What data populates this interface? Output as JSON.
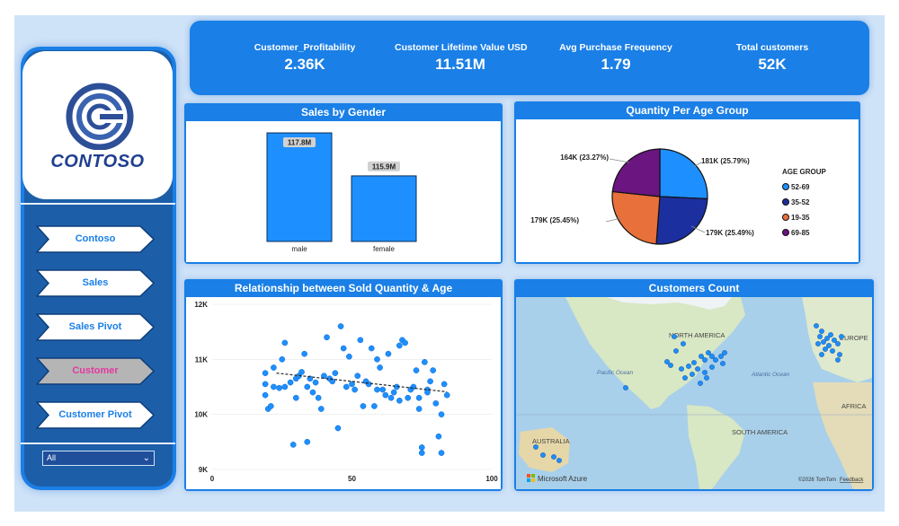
{
  "kpis": [
    {
      "label": "Customer_Profitability",
      "value": "2.36K"
    },
    {
      "label": "Customer Lifetime Value USD",
      "value": "11.51M"
    },
    {
      "label": "Avg Purchase Frequency",
      "value": "1.79"
    },
    {
      "label": "Total customers",
      "value": "52K"
    }
  ],
  "logo": {
    "text": "CONTOSO"
  },
  "nav": [
    {
      "label": "Contoso",
      "active": false
    },
    {
      "label": "Sales",
      "active": false
    },
    {
      "label": "Sales Pivot",
      "active": false
    },
    {
      "label": "Customer",
      "active": true
    },
    {
      "label": "Customer Pivot",
      "active": false
    }
  ],
  "filter": {
    "value": "All"
  },
  "panels": {
    "gender": {
      "title": "Sales by Gender"
    },
    "age": {
      "title": "Quantity Per Age Group"
    },
    "scatter": {
      "title": "Relationship between Sold Quantity & Age"
    },
    "map": {
      "title": "Customers Count"
    }
  },
  "colors": {
    "accent": "#1a7fe6",
    "bar": "#1e8fff",
    "active_text": "#e23aa0"
  },
  "chart_data": [
    {
      "type": "bar",
      "title": "Sales by Gender",
      "categories": [
        "male",
        "female"
      ],
      "values": [
        117.8,
        115.9
      ],
      "data_labels": [
        "117.8M",
        "115.9M"
      ],
      "ylim": [
        113,
        118
      ]
    },
    {
      "type": "pie",
      "title": "Quantity Per Age Group",
      "legend_title": "AGE GROUP",
      "legend_position": "right",
      "slices": [
        {
          "name": "52-69",
          "value": 181,
          "label": "181K (25.79%)",
          "color": "#1e8fff"
        },
        {
          "name": "35-52",
          "value": 179,
          "label": "179K (25.49%)",
          "color": "#1c2f9e"
        },
        {
          "name": "19-35",
          "value": 179,
          "label": "179K (25.45%)",
          "color": "#e8703a"
        },
        {
          "name": "69-85",
          "value": 164,
          "label": "164K (23.27%)",
          "color": "#6a1580"
        }
      ]
    },
    {
      "type": "scatter",
      "title": "Relationship between Sold Quantity & Age",
      "xlim": [
        0,
        100
      ],
      "ylim": [
        9000,
        12000
      ],
      "xticks": [
        "0",
        "50",
        "100"
      ],
      "yticks": [
        "12K",
        "11K",
        "10K",
        "9K"
      ],
      "trend": {
        "x": [
          23,
          84
        ],
        "y": [
          10750,
          10410
        ]
      },
      "points": [
        [
          19,
          10750
        ],
        [
          19,
          10550
        ],
        [
          19,
          10350
        ],
        [
          20,
          10100
        ],
        [
          21,
          10150
        ],
        [
          22,
          10850
        ],
        [
          22,
          10500
        ],
        [
          24,
          10480
        ],
        [
          25,
          11000
        ],
        [
          26,
          11300
        ],
        [
          26,
          10500
        ],
        [
          28,
          10580
        ],
        [
          29,
          9450
        ],
        [
          30,
          10650
        ],
        [
          30,
          10300
        ],
        [
          31,
          10700
        ],
        [
          32,
          10770
        ],
        [
          33,
          11100
        ],
        [
          34,
          10500
        ],
        [
          34,
          9500
        ],
        [
          35,
          10650
        ],
        [
          36,
          10400
        ],
        [
          37,
          10580
        ],
        [
          38,
          10300
        ],
        [
          39,
          10100
        ],
        [
          40,
          10700
        ],
        [
          41,
          11400
        ],
        [
          42,
          10650
        ],
        [
          43,
          10600
        ],
        [
          44,
          10750
        ],
        [
          45,
          9750
        ],
        [
          46,
          11600
        ],
        [
          47,
          11200
        ],
        [
          48,
          10500
        ],
        [
          49,
          11050
        ],
        [
          50,
          10550
        ],
        [
          51,
          10450
        ],
        [
          52,
          10700
        ],
        [
          53,
          11350
        ],
        [
          54,
          10150
        ],
        [
          55,
          10600
        ],
        [
          56,
          10550
        ],
        [
          57,
          11200
        ],
        [
          58,
          10150
        ],
        [
          59,
          10450
        ],
        [
          59,
          11000
        ],
        [
          60,
          10850
        ],
        [
          61,
          10450
        ],
        [
          62,
          10350
        ],
        [
          63,
          11100
        ],
        [
          64,
          10300
        ],
        [
          65,
          10400
        ],
        [
          66,
          10500
        ],
        [
          67,
          11250
        ],
        [
          67,
          10250
        ],
        [
          68,
          11350
        ],
        [
          69,
          11300
        ],
        [
          70,
          10300
        ],
        [
          71,
          10450
        ],
        [
          72,
          10500
        ],
        [
          73,
          10800
        ],
        [
          74,
          10300
        ],
        [
          74,
          10100
        ],
        [
          75,
          9400
        ],
        [
          75,
          9300
        ],
        [
          76,
          10950
        ],
        [
          77,
          10450
        ],
        [
          77,
          10400
        ],
        [
          78,
          10600
        ],
        [
          79,
          10800
        ],
        [
          80,
          10200
        ],
        [
          81,
          9600
        ],
        [
          82,
          9300
        ],
        [
          82,
          10000
        ],
        [
          83,
          10550
        ],
        [
          84,
          10350
        ]
      ]
    }
  ],
  "map": {
    "labels": [
      "NORTH AMERICA",
      "EUROPE",
      "Pacific Ocean",
      "Atlantic Ocean",
      "AFRICA",
      "SOUTH AMERICA",
      "AUSTRALIA"
    ],
    "attribution": "©2026 TomTom",
    "feedback": "Feedback",
    "brand": "Microsoft Azure"
  }
}
